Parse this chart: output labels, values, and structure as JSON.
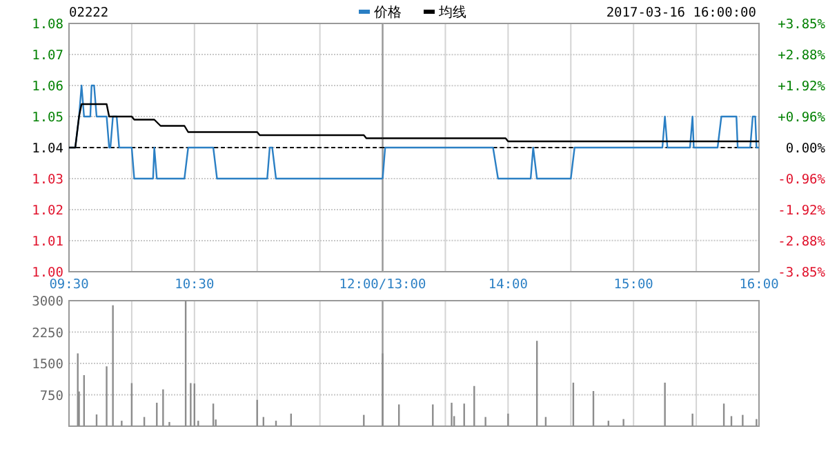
{
  "chart_data": [
    {
      "type": "line",
      "title": "02222",
      "legend": "top",
      "grid": true,
      "xlim": [
        9.5,
        12
      ],
      "xticks": [
        {
          "value": 9.5,
          "label": "09:30"
        },
        {
          "value": 10,
          "label": null
        },
        {
          "value": 10.5,
          "label": "10:30"
        },
        {
          "value": 11,
          "label": null
        },
        {
          "value": 11.5,
          "label": null
        },
        {
          "value": 12,
          "label": "12:00/13:00"
        }
      ],
      "ylim": [
        1.0,
        1.08
      ],
      "yticks": [
        {
          "value": 1.0,
          "label": "1.00"
        },
        {
          "value": 1.01,
          "label": "1.01"
        },
        {
          "value": 1.02,
          "label": "1.02"
        },
        {
          "value": 1.03,
          "label": "1.03"
        },
        {
          "value": 1.04,
          "label": "1.04"
        },
        {
          "value": 1.05,
          "label": "1.05"
        },
        {
          "value": 1.06,
          "label": "1.06"
        },
        {
          "value": 1.07,
          "label": "1.07"
        },
        {
          "value": 1.08,
          "label": "1.08"
        }
      ],
      "ref_lines": [
        {
          "axis": "y",
          "value": 1.04,
          "color": "#000000",
          "line_style": "dashed"
        }
      ],
      "series": [
        {
          "name": "价格",
          "color": "#2a7fc4",
          "x": [
            9.5,
            9.55,
            9.58,
            9.6,
            9.62,
            9.67,
            9.68,
            9.7,
            9.72,
            9.8,
            9.82,
            9.83,
            9.85,
            9.88,
            9.9,
            10,
            10.02,
            10.17,
            10.18,
            10.2,
            10.42,
            10.45,
            10.65,
            10.68,
            11.08,
            11.1,
            11.12,
            11.15,
            12
          ],
          "values": [
            1.04,
            1.04,
            1.05,
            1.06,
            1.05,
            1.05,
            1.06,
            1.06,
            1.05,
            1.05,
            1.04,
            1.04,
            1.05,
            1.05,
            1.04,
            1.04,
            1.03,
            1.03,
            1.04,
            1.03,
            1.03,
            1.04,
            1.04,
            1.03,
            1.03,
            1.04,
            1.04,
            1.03,
            1.03
          ]
        },
        {
          "name": "均线",
          "color": "#000000",
          "x": [
            9.5,
            9.55,
            9.58,
            9.6,
            9.8,
            9.82,
            10,
            10.02,
            10.18,
            10.23,
            10.42,
            10.45,
            11,
            11.02,
            11.85,
            11.87,
            12
          ],
          "values": [
            1.04,
            1.04,
            1.05,
            1.054,
            1.054,
            1.05,
            1.05,
            1.049,
            1.049,
            1.047,
            1.047,
            1.045,
            1.045,
            1.044,
            1.044,
            1.043,
            1.043
          ]
        }
      ]
    },
    {
      "type": "line",
      "annotations": [
        "2017-03-16 16:00:00"
      ],
      "grid": true,
      "xlim": [
        13,
        16
      ],
      "xticks": [
        {
          "value": 13,
          "label": null
        },
        {
          "value": 13.5,
          "label": null
        },
        {
          "value": 14,
          "label": "14:00"
        },
        {
          "value": 14.5,
          "label": null
        },
        {
          "value": 15,
          "label": "15:00"
        },
        {
          "value": 15.5,
          "label": null
        },
        {
          "value": 16,
          "label": "16:00"
        }
      ],
      "ylim": [
        1.0,
        1.08
      ],
      "y2lim": [
        -3.85,
        3.85
      ],
      "y2ticks": [
        {
          "value": -3.85,
          "label": "-3.85%"
        },
        {
          "value": -2.88,
          "label": "-2.88%"
        },
        {
          "value": -1.92,
          "label": "-1.92%"
        },
        {
          "value": -0.96,
          "label": "-0.96%"
        },
        {
          "value": 0,
          "label": "0.00%"
        },
        {
          "value": 0.96,
          "label": "+0.96%"
        },
        {
          "value": 1.92,
          "label": "+1.92%"
        },
        {
          "value": 2.88,
          "label": "+2.88%"
        },
        {
          "value": 3.85,
          "label": "+3.85%"
        }
      ],
      "ref_lines": [
        {
          "axis": "y",
          "value": 1.04,
          "color": "#000000",
          "line_style": "dashed"
        }
      ],
      "series": [
        {
          "color": "#2a7fc4",
          "x": [
            13,
            13.02,
            13.88,
            13.92,
            14.18,
            14.2,
            14.23,
            14.5,
            14.53,
            15.23,
            15.25,
            15.27,
            15.45,
            15.47,
            15.48,
            15.67,
            15.7,
            15.82,
            15.83,
            15.93,
            15.95,
            15.97,
            15.98,
            16
          ],
          "values": [
            1.03,
            1.04,
            1.04,
            1.03,
            1.03,
            1.04,
            1.03,
            1.03,
            1.04,
            1.04,
            1.05,
            1.04,
            1.04,
            1.05,
            1.04,
            1.04,
            1.05,
            1.05,
            1.04,
            1.04,
            1.05,
            1.05,
            1.04,
            1.04
          ]
        },
        {
          "color": "#000000",
          "x": [
            13,
            13.98,
            14,
            16
          ],
          "values": [
            1.043,
            1.043,
            1.042,
            1.042
          ]
        }
      ]
    },
    {
      "type": "bar",
      "grid": true,
      "tick_labels": "y",
      "color": "#8c8c8c",
      "xlim": [
        9.5,
        12
      ],
      "xticks": [
        9.5,
        10,
        10.5,
        11,
        11.5,
        12
      ],
      "ylim": [
        0,
        3000
      ],
      "yticks": [
        {
          "value": 0,
          "label": null
        },
        750,
        1500,
        2250,
        3000
      ],
      "x": [
        9.57,
        9.58,
        9.62,
        9.72,
        9.8,
        9.85,
        9.92,
        10,
        10.1,
        10.2,
        10.25,
        10.3,
        10.43,
        10.47,
        10.5,
        10.53,
        10.65,
        10.67,
        11,
        11.05,
        11.15,
        11.27,
        11.85,
        12
      ],
      "values": [
        1740,
        830,
        1220,
        280,
        1430,
        2890,
        130,
        1030,
        220,
        560,
        880,
        100,
        3000,
        1030,
        1020,
        130,
        540,
        160,
        630,
        220,
        130,
        300,
        270,
        1740
      ]
    },
    {
      "type": "bar",
      "grid": true,
      "tick_labels": false,
      "color": "#8c8c8c",
      "xlim": [
        13,
        16
      ],
      "xticks": [
        13,
        13.5,
        14,
        14.5,
        15,
        15.5,
        16
      ],
      "ylim": [
        0,
        3000
      ],
      "yticks": [
        {
          "value": 0,
          "label": null
        },
        750,
        1500,
        2250,
        3000
      ],
      "x": [
        13.13,
        13.4,
        13.55,
        13.57,
        13.65,
        13.73,
        13.82,
        14,
        14.23,
        14.3,
        14.52,
        14.68,
        14.8,
        14.92,
        15.25,
        15.47,
        15.72,
        15.78,
        15.87,
        15.98
      ],
      "values": [
        520,
        520,
        560,
        240,
        540,
        960,
        220,
        300,
        2040,
        220,
        1040,
        840,
        130,
        170,
        1040,
        300,
        540,
        240,
        270,
        170
      ]
    }
  ]
}
